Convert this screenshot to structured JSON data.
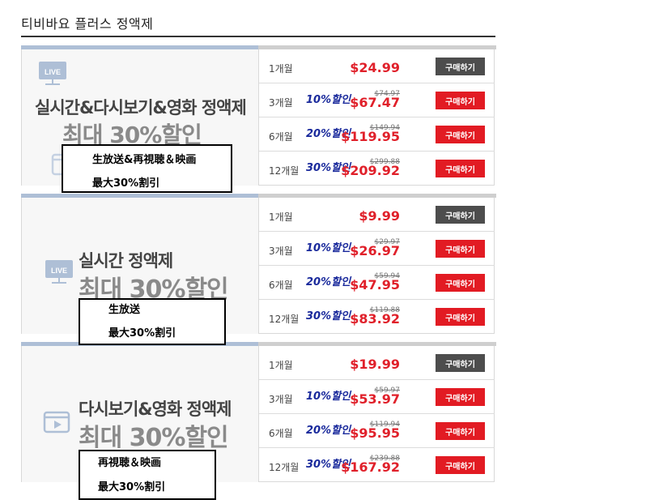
{
  "page": {
    "title": "티비바요 플러스 정액제"
  },
  "plans": [
    {
      "headline": "실시간&다시보기&영화 정액제",
      "subline": "최대 30%할인",
      "icon": "live-tv-icon",
      "icon_label": "LIVE",
      "overlay": {
        "line1": "生放送&再視聴＆映画",
        "line2": "最大30%割引"
      },
      "rows": [
        {
          "period": "1개월",
          "discount": "",
          "original": "",
          "price": "$24.99",
          "buy": "구매하기"
        },
        {
          "period": "3개월",
          "discount": "10%할인",
          "original": "$74.97",
          "price": "$67.47",
          "buy": "구매하기"
        },
        {
          "period": "6개월",
          "discount": "20%할인",
          "original": "$149.94",
          "price": "$119.95",
          "buy": "구매하기"
        },
        {
          "period": "12개월",
          "discount": "30%할인",
          "original": "$299.88",
          "price": "$209.92",
          "buy": "구매하기"
        }
      ]
    },
    {
      "headline": "실시간 정액제",
      "subline": "최대 30%할인",
      "icon": "live-tv-icon",
      "icon_label": "LIVE",
      "overlay": {
        "line1": "生放送",
        "line2": "最大30%割引"
      },
      "rows": [
        {
          "period": "1개월",
          "discount": "",
          "original": "",
          "price": "$9.99",
          "buy": "구매하기"
        },
        {
          "period": "3개월",
          "discount": "10%할인",
          "original": "$29.97",
          "price": "$26.97",
          "buy": "구매하기"
        },
        {
          "period": "6개월",
          "discount": "20%할인",
          "original": "$59.94",
          "price": "$47.95",
          "buy": "구매하기"
        },
        {
          "period": "12개월",
          "discount": "30%할인",
          "original": "$119.88",
          "price": "$83.92",
          "buy": "구매하기"
        }
      ]
    },
    {
      "headline": "다시보기&영화 정액제",
      "subline": "최대 30%할인",
      "icon": "video-play-icon",
      "icon_label": "",
      "overlay": {
        "line1": "再視聴＆映画",
        "line2": "最大30%割引"
      },
      "rows": [
        {
          "period": "1개월",
          "discount": "",
          "original": "",
          "price": "$19.99",
          "buy": "구매하기"
        },
        {
          "period": "3개월",
          "discount": "10%할인",
          "original": "$59.97",
          "price": "$53.97",
          "buy": "구매하기"
        },
        {
          "period": "6개월",
          "discount": "20%할인",
          "original": "$119.94",
          "price": "$95.95",
          "buy": "구매하기"
        },
        {
          "period": "12개월",
          "discount": "30%할인",
          "original": "$239.88",
          "price": "$167.92",
          "buy": "구매하기"
        }
      ]
    }
  ],
  "colors": {
    "price": "#e21b23",
    "discount": "#1a2a9c",
    "buy_dark": "#4d4d4d",
    "buy_red": "#e21b23",
    "accent": "#aebfd6"
  }
}
